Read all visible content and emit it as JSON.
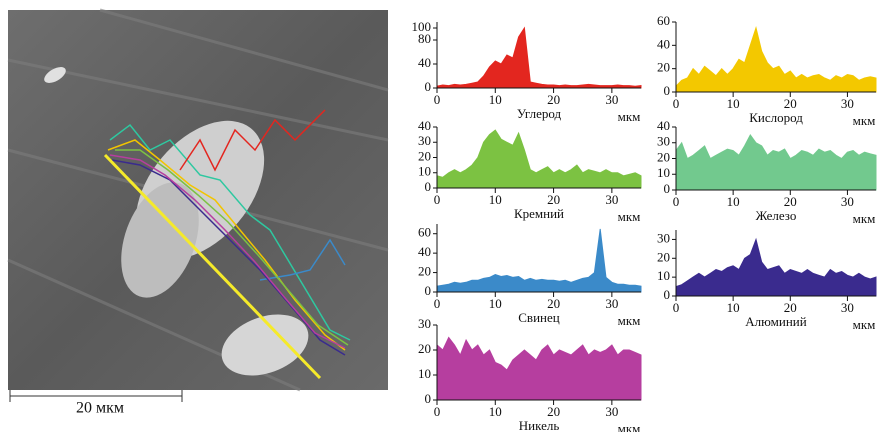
{
  "image": {
    "scale_label": "20 мкм"
  },
  "chart_data": [
    {
      "type": "area",
      "title": "Углерод",
      "x_label": "мкм",
      "color": "#e3261f",
      "x": [
        0,
        1,
        2,
        3,
        4,
        5,
        6,
        7,
        8,
        9,
        10,
        11,
        12,
        13,
        14,
        15,
        16,
        17,
        18,
        19,
        20,
        21,
        22,
        23,
        24,
        25,
        26,
        27,
        28,
        29,
        30,
        31,
        32,
        33,
        34,
        35
      ],
      "values": [
        3,
        5,
        4,
        6,
        5,
        6,
        8,
        10,
        20,
        35,
        45,
        40,
        55,
        50,
        85,
        100,
        10,
        8,
        6,
        5,
        5,
        4,
        5,
        4,
        4,
        5,
        6,
        5,
        4,
        4,
        4,
        5,
        4,
        4,
        3,
        4
      ],
      "xlim": [
        0,
        35
      ],
      "xticks": [
        0,
        10,
        20,
        30
      ],
      "ylim": [
        0,
        110
      ],
      "yticks": [
        0,
        40,
        80,
        100
      ]
    },
    {
      "type": "area",
      "title": "Кислород",
      "x_label": "мкм",
      "color": "#f3c800",
      "x": [
        0,
        1,
        2,
        3,
        4,
        5,
        6,
        7,
        8,
        9,
        10,
        11,
        12,
        13,
        14,
        15,
        16,
        17,
        18,
        19,
        20,
        21,
        22,
        23,
        24,
        25,
        26,
        27,
        28,
        29,
        30,
        31,
        32,
        33,
        34,
        35
      ],
      "values": [
        5,
        10,
        12,
        20,
        15,
        22,
        18,
        14,
        20,
        15,
        20,
        28,
        25,
        40,
        55,
        35,
        25,
        20,
        22,
        15,
        18,
        12,
        15,
        12,
        14,
        15,
        12,
        10,
        14,
        12,
        15,
        14,
        10,
        12,
        13,
        12
      ],
      "xlim": [
        0,
        35
      ],
      "xticks": [
        0,
        10,
        20,
        30
      ],
      "ylim": [
        0,
        60
      ],
      "yticks": [
        0,
        20,
        40,
        60
      ]
    },
    {
      "type": "area",
      "title": "Кремний",
      "x_label": "мкм",
      "color": "#7cc242",
      "x": [
        0,
        1,
        2,
        3,
        4,
        5,
        6,
        7,
        8,
        9,
        10,
        11,
        12,
        13,
        14,
        15,
        16,
        17,
        18,
        19,
        20,
        21,
        22,
        23,
        24,
        25,
        26,
        27,
        28,
        29,
        30,
        31,
        32,
        33,
        34,
        35
      ],
      "values": [
        8,
        7,
        10,
        12,
        10,
        12,
        15,
        20,
        30,
        35,
        38,
        32,
        30,
        28,
        36,
        25,
        12,
        10,
        12,
        14,
        10,
        12,
        10,
        12,
        15,
        10,
        12,
        11,
        10,
        12,
        10,
        10,
        8,
        9,
        10,
        8
      ],
      "xlim": [
        0,
        35
      ],
      "xticks": [
        0,
        10,
        20,
        30
      ],
      "ylim": [
        0,
        40
      ],
      "yticks": [
        0,
        10,
        20,
        30,
        40
      ]
    },
    {
      "type": "area",
      "title": "Железо",
      "x_label": "мкм",
      "color": "#72c98e",
      "x": [
        0,
        1,
        2,
        3,
        4,
        5,
        6,
        7,
        8,
        9,
        10,
        11,
        12,
        13,
        14,
        15,
        16,
        17,
        18,
        19,
        20,
        21,
        22,
        23,
        24,
        25,
        26,
        27,
        28,
        29,
        30,
        31,
        32,
        33,
        34,
        35
      ],
      "values": [
        25,
        30,
        20,
        22,
        25,
        28,
        20,
        22,
        24,
        26,
        25,
        22,
        28,
        35,
        30,
        28,
        22,
        25,
        24,
        26,
        20,
        22,
        25,
        24,
        22,
        26,
        24,
        25,
        22,
        20,
        24,
        25,
        22,
        24,
        23,
        22
      ],
      "xlim": [
        0,
        35
      ],
      "xticks": [
        0,
        10,
        20,
        30
      ],
      "ylim": [
        0,
        40
      ],
      "yticks": [
        0,
        10,
        20,
        30,
        40
      ]
    },
    {
      "type": "area",
      "title": "Свинец",
      "x_label": "мкм",
      "color": "#3b8ac9",
      "x": [
        0,
        1,
        2,
        3,
        4,
        5,
        6,
        7,
        8,
        9,
        10,
        11,
        12,
        13,
        14,
        15,
        16,
        17,
        18,
        19,
        20,
        21,
        22,
        23,
        24,
        25,
        26,
        27,
        28,
        29,
        30,
        31,
        32,
        33,
        34,
        35
      ],
      "values": [
        6,
        7,
        8,
        10,
        9,
        10,
        12,
        12,
        14,
        15,
        18,
        16,
        17,
        15,
        16,
        12,
        14,
        12,
        13,
        12,
        12,
        11,
        12,
        10,
        12,
        14,
        15,
        20,
        65,
        15,
        10,
        8,
        8,
        7,
        7,
        6
      ],
      "xlim": [
        0,
        35
      ],
      "xticks": [
        0,
        10,
        20,
        30
      ],
      "ylim": [
        0,
        70
      ],
      "yticks": [
        0,
        20,
        40,
        60
      ]
    },
    {
      "type": "area",
      "title": "Алюминий",
      "x_label": "мкм",
      "color": "#3a2b8e",
      "x": [
        0,
        1,
        2,
        3,
        4,
        5,
        6,
        7,
        8,
        9,
        10,
        11,
        12,
        13,
        14,
        15,
        16,
        17,
        18,
        19,
        20,
        21,
        22,
        23,
        24,
        25,
        26,
        27,
        28,
        29,
        30,
        31,
        32,
        33,
        34,
        35
      ],
      "values": [
        5,
        6,
        8,
        10,
        12,
        10,
        12,
        14,
        13,
        15,
        16,
        14,
        20,
        22,
        30,
        18,
        14,
        15,
        16,
        12,
        14,
        13,
        12,
        14,
        12,
        11,
        10,
        14,
        12,
        13,
        11,
        10,
        12,
        10,
        9,
        10
      ],
      "xlim": [
        0,
        35
      ],
      "xticks": [
        0,
        10,
        20,
        30
      ],
      "ylim": [
        0,
        35
      ],
      "yticks": [
        0,
        10,
        20,
        30
      ]
    },
    {
      "type": "area",
      "title": "Никель",
      "x_label": "мкм",
      "color": "#b63e9f",
      "x": [
        0,
        1,
        2,
        3,
        4,
        5,
        6,
        7,
        8,
        9,
        10,
        11,
        12,
        13,
        14,
        15,
        16,
        17,
        18,
        19,
        20,
        21,
        22,
        23,
        24,
        25,
        26,
        27,
        28,
        29,
        30,
        31,
        32,
        33,
        34,
        35
      ],
      "values": [
        22,
        20,
        25,
        22,
        18,
        24,
        20,
        22,
        18,
        20,
        15,
        14,
        12,
        16,
        18,
        20,
        18,
        16,
        20,
        22,
        18,
        20,
        19,
        18,
        20,
        22,
        18,
        20,
        19,
        20,
        22,
        18,
        20,
        20,
        19,
        18
      ],
      "xlim": [
        0,
        35
      ],
      "xticks": [
        0,
        10,
        20,
        30
      ],
      "ylim": [
        0,
        30
      ],
      "yticks": [
        0,
        10,
        20,
        30
      ]
    }
  ]
}
